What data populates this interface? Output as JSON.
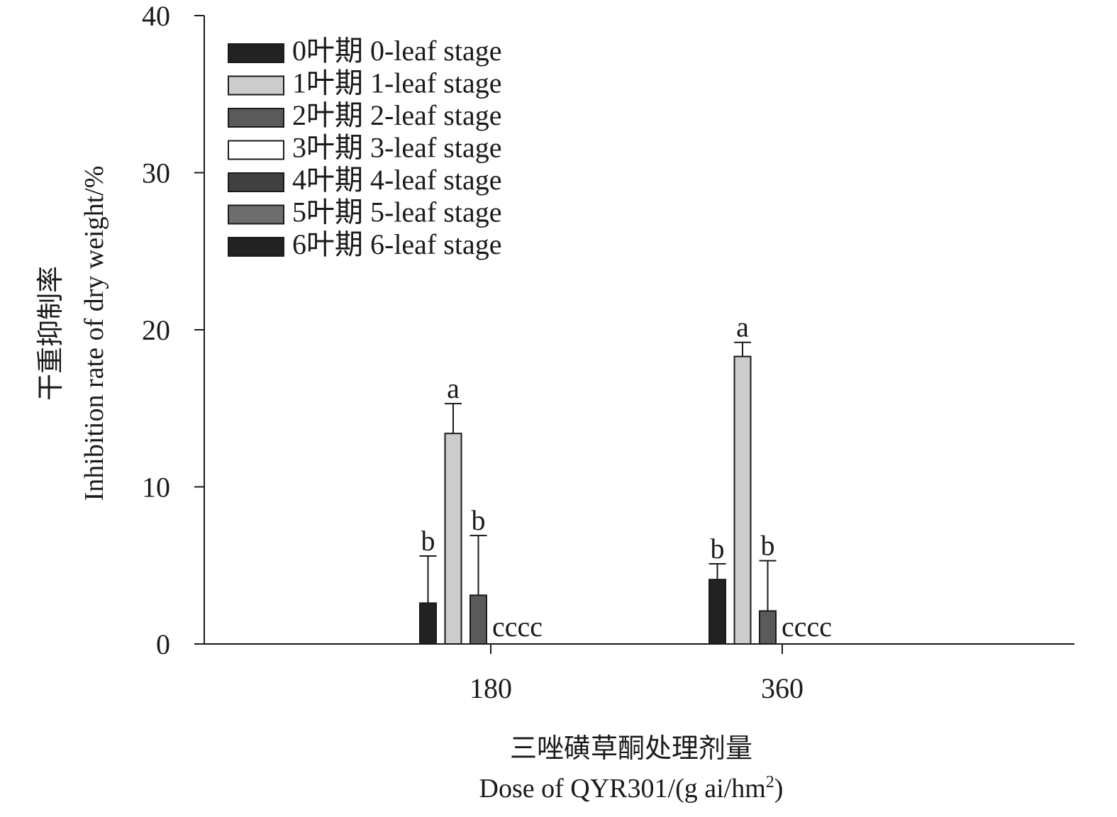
{
  "chart_data": {
    "type": "bar",
    "ylabel_cn": "干重抑制率",
    "ylabel_en": "Inhibition rate of dry weight/%",
    "xlabel_cn": "三唑磺草酮处理剂量",
    "xlabel_en_main": "Dose of QYR301/(g ai/hm",
    "xlabel_en_sup": "2",
    "xlabel_en_tail": ")",
    "ylim": [
      0,
      40
    ],
    "yticks": [
      "0",
      "10",
      "20",
      "30",
      "40"
    ],
    "categories": [
      "180",
      "360"
    ],
    "legend_position": "top-left",
    "grid": false,
    "series": [
      {
        "name": "0叶期 0-leaf stage",
        "color": "#222222",
        "values": [
          2.6,
          4.1
        ],
        "errors": [
          3.0,
          1.0
        ]
      },
      {
        "name": "1叶期 1-leaf stage",
        "color": "#cccccc",
        "values": [
          13.4,
          18.3
        ],
        "errors": [
          1.9,
          0.9
        ]
      },
      {
        "name": "2叶期 2-leaf stage",
        "color": "#5a5a5a",
        "values": [
          3.1,
          2.1
        ],
        "errors": [
          3.8,
          3.2
        ]
      },
      {
        "name": "3叶期 3-leaf stage",
        "color": "#ffffff",
        "values": [
          0,
          0
        ],
        "errors": [
          0,
          0
        ]
      },
      {
        "name": "4叶期 4-leaf stage",
        "color": "#404040",
        "values": [
          0,
          0
        ],
        "errors": [
          0,
          0
        ]
      },
      {
        "name": "5叶期 5-leaf stage",
        "color": "#6e6e6e",
        "values": [
          0,
          0
        ],
        "errors": [
          0,
          0
        ]
      },
      {
        "name": "6叶期 6-leaf stage",
        "color": "#222222",
        "values": [
          0,
          0
        ],
        "errors": [
          0,
          0
        ]
      }
    ],
    "annotations": [
      {
        "category": "180",
        "labels": [
          "b",
          "a",
          "b"
        ],
        "zero_label": "cccc"
      },
      {
        "category": "360",
        "labels": [
          "b",
          "a",
          "b"
        ],
        "zero_label": "cccc"
      }
    ]
  }
}
